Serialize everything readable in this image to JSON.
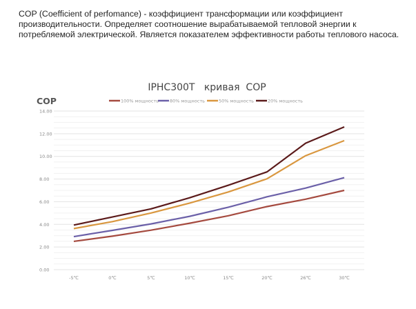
{
  "intro_text": "COP (Coefficient of perfomance) - коэффициент трансформации или коэффициент производительности. Определяет соотношение вырабатываемой тепловой энергии к потребляемой электрической. Является показателем эффективности работы теплового насоса.",
  "chart_data": {
    "type": "line",
    "title": "IPHC300T   кривая  COP",
    "ylabel": "COP",
    "xlabel": "",
    "categories": [
      "-5℃",
      "0℃",
      "5℃",
      "10℃",
      "15℃",
      "20℃",
      "26℃",
      "30℃"
    ],
    "ylim": [
      0,
      14
    ],
    "yticks": [
      "0.00",
      "2.00",
      "4.00",
      "6.00",
      "8.00",
      "10.00",
      "12.00",
      "14.00"
    ],
    "grid": true,
    "legend_position": "top",
    "series": [
      {
        "name": "100% мощность",
        "color": "#a54a3f",
        "values": [
          2.5,
          2.96,
          3.49,
          4.1,
          4.76,
          5.57,
          6.22,
          7.0
        ]
      },
      {
        "name": "80% мощность",
        "color": "#6b60a8",
        "values": [
          2.92,
          3.47,
          4.04,
          4.71,
          5.51,
          6.43,
          7.2,
          8.12
        ]
      },
      {
        "name": "50% мощность",
        "color": "#d9973f",
        "values": [
          3.63,
          4.24,
          5.0,
          5.88,
          6.86,
          8.02,
          10.06,
          11.39
        ]
      },
      {
        "name": "20% мощность",
        "color": "#5b1a1a",
        "values": [
          3.94,
          4.65,
          5.37,
          6.35,
          7.45,
          8.63,
          11.16,
          12.6
        ]
      }
    ]
  }
}
